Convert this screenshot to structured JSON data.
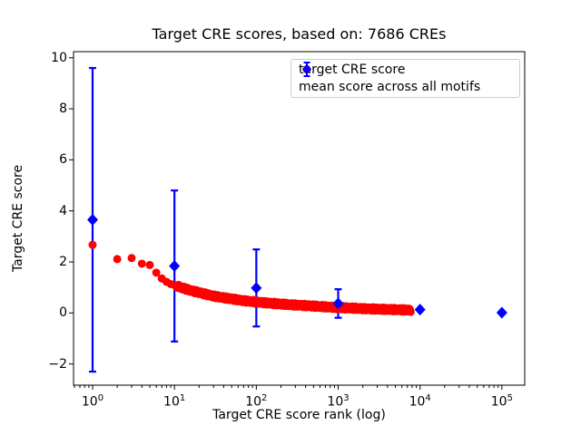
{
  "chart_data": {
    "type": "scatter",
    "title": "Target CRE scores, based on: 7686 CREs",
    "xlabel": "Target CRE score rank (log)",
    "ylabel": "Target CRE score",
    "x_scale": "log",
    "xlim": [
      0.585,
      190000
    ],
    "ylim": [
      -2.83,
      10.24
    ],
    "x_tick_exponents": [
      0,
      1,
      2,
      3,
      4,
      5
    ],
    "y_ticks": [
      -2,
      0,
      2,
      4,
      6,
      8,
      10
    ],
    "grid": false,
    "legend_position": "upper right",
    "background_color": "#ffffff",
    "axis_color": "#000000",
    "series": [
      {
        "name": "target CRE score",
        "kind": "scatter",
        "marker": "circle",
        "color": "#ff0000",
        "n_points": 7686,
        "sample_points": [
          [
            1,
            2.67
          ],
          [
            2,
            2.11
          ],
          [
            3,
            2.15
          ],
          [
            4,
            1.93
          ],
          [
            5,
            1.88
          ],
          [
            6,
            1.58
          ],
          [
            7,
            1.35
          ],
          [
            8,
            1.22
          ],
          [
            9,
            1.13
          ],
          [
            10,
            1.1
          ],
          [
            12,
            1.0
          ],
          [
            15,
            0.9
          ],
          [
            20,
            0.8
          ],
          [
            30,
            0.66
          ],
          [
            50,
            0.55
          ],
          [
            70,
            0.48
          ],
          [
            100,
            0.43
          ],
          [
            150,
            0.38
          ],
          [
            200,
            0.35
          ],
          [
            300,
            0.31
          ],
          [
            500,
            0.27
          ],
          [
            700,
            0.24
          ],
          [
            1000,
            0.21
          ],
          [
            1500,
            0.19
          ],
          [
            2000,
            0.17
          ],
          [
            3000,
            0.15
          ],
          [
            5000,
            0.13
          ],
          [
            7686,
            0.11
          ]
        ]
      },
      {
        "name": "mean score across all motifs",
        "kind": "errorbar",
        "marker": "diamond",
        "color": "#0000ff",
        "x": [
          1,
          10,
          100,
          1000,
          10000,
          100000
        ],
        "y": [
          3.65,
          1.84,
          0.98,
          0.37,
          0.13,
          0.01
        ],
        "yerr": [
          5.95,
          2.96,
          1.51,
          0.56,
          0,
          0
        ]
      }
    ]
  }
}
